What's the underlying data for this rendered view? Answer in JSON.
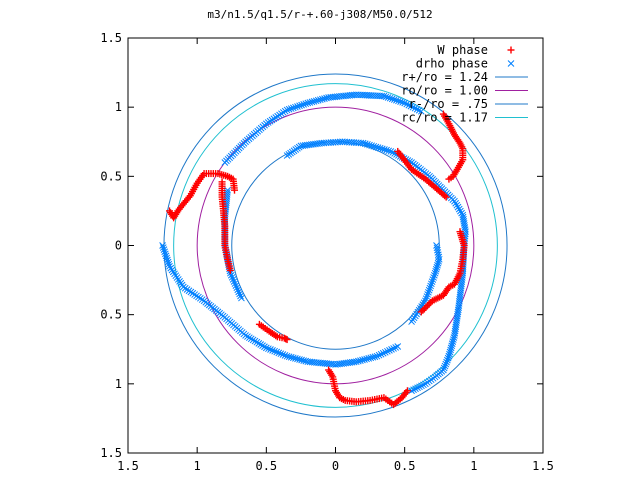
{
  "chart_data": {
    "type": "scatter",
    "title": "m3/n1.5/q1.5/r-+.60-j308/M50.0/512",
    "xlabel": "",
    "ylabel": "",
    "xlim": [
      -1.5,
      1.5
    ],
    "ylim": [
      -1.5,
      1.5
    ],
    "x_tick_labels": [
      "1.5",
      "1",
      "0.5",
      "0",
      "0.5",
      "1",
      "1.5"
    ],
    "x_tick_values": [
      -1.5,
      -1.0,
      -0.5,
      0,
      0.5,
      1.0,
      1.5
    ],
    "y_tick_labels": [
      "1.5",
      "1",
      "0.5",
      "0",
      "0.5",
      "1",
      "1.5"
    ],
    "y_tick_values": [
      1.5,
      1.0,
      0.5,
      0,
      -0.5,
      -1.0,
      -1.5
    ],
    "legend_position": "top-right",
    "legend": [
      {
        "label": "W phase",
        "symbol": "plus",
        "color": "#ff0000"
      },
      {
        "label": "drho phase",
        "symbol": "cross",
        "color": "#0080ff"
      },
      {
        "label": "r+/ro = 1.24",
        "symbol": "line",
        "color": "#1f78c8"
      },
      {
        "label": "ro/ro = 1.00",
        "symbol": "line",
        "color": "#a020a0"
      },
      {
        "label": "r-/ro = .75",
        "symbol": "line",
        "color": "#1f78c8"
      },
      {
        "label": "rc/ro = 1.17",
        "symbol": "line",
        "color": "#20c0d0"
      }
    ],
    "circles": [
      {
        "name": "r+/ro = 1.24",
        "radius": 1.24,
        "color": "#1f78c8"
      },
      {
        "name": "ro/ro = 1.00",
        "radius": 1.0,
        "color": "#a020a0"
      },
      {
        "name": "r-/ro = .75",
        "radius": 0.75,
        "color": "#1f78c8"
      },
      {
        "name": "rc/ro = 1.17",
        "radius": 1.17,
        "color": "#20c0d0"
      }
    ],
    "series": [
      {
        "name": "drho phase",
        "color": "#0080ff",
        "segments": [
          [
            [
              -1.25,
              0.0
            ],
            [
              -1.2,
              -0.15
            ],
            [
              -1.1,
              -0.3
            ],
            [
              -0.95,
              -0.4
            ],
            [
              -0.8,
              -0.52
            ],
            [
              -0.65,
              -0.65
            ],
            [
              -0.5,
              -0.74
            ],
            [
              -0.35,
              -0.8
            ],
            [
              -0.2,
              -0.84
            ],
            [
              0.0,
              -0.86
            ],
            [
              0.15,
              -0.84
            ],
            [
              0.3,
              -0.8
            ],
            [
              0.45,
              -0.73
            ]
          ],
          [
            [
              -0.8,
              0.6
            ],
            [
              -0.65,
              0.75
            ],
            [
              -0.5,
              0.88
            ],
            [
              -0.35,
              0.98
            ],
            [
              -0.2,
              1.03
            ],
            [
              -0.05,
              1.07
            ],
            [
              0.15,
              1.09
            ],
            [
              0.35,
              1.08
            ],
            [
              0.5,
              1.03
            ],
            [
              0.62,
              0.97
            ]
          ],
          [
            [
              -0.35,
              0.65
            ],
            [
              -0.25,
              0.72
            ],
            [
              -0.1,
              0.74
            ],
            [
              0.05,
              0.75
            ],
            [
              0.2,
              0.74
            ],
            [
              0.4,
              0.68
            ],
            [
              0.55,
              0.6
            ],
            [
              0.68,
              0.5
            ],
            [
              0.78,
              0.4
            ],
            [
              0.86,
              0.32
            ],
            [
              0.92,
              0.22
            ],
            [
              0.94,
              0.1
            ],
            [
              0.93,
              0.0
            ],
            [
              0.92,
              -0.2
            ],
            [
              0.89,
              -0.45
            ],
            [
              0.86,
              -0.65
            ],
            [
              0.82,
              -0.8
            ]
          ],
          [
            [
              0.55,
              -1.05
            ],
            [
              0.65,
              -1.0
            ],
            [
              0.72,
              -0.95
            ],
            [
              0.78,
              -0.9
            ],
            [
              0.82,
              -0.8
            ]
          ],
          [
            [
              0.73,
              0.0
            ],
            [
              0.75,
              -0.1
            ],
            [
              0.72,
              -0.2
            ],
            [
              0.65,
              -0.4
            ],
            [
              0.55,
              -0.55
            ]
          ],
          [
            [
              -0.78,
              0.4
            ],
            [
              -0.8,
              0.2
            ],
            [
              -0.8,
              0.0
            ],
            [
              -0.76,
              -0.2
            ],
            [
              -0.68,
              -0.38
            ]
          ]
        ]
      },
      {
        "name": "W phase",
        "color": "#ff0000",
        "segments": [
          [
            [
              -1.2,
              0.25
            ],
            [
              -1.17,
              0.2
            ],
            [
              -1.14,
              0.25
            ],
            [
              -1.1,
              0.3
            ],
            [
              -1.05,
              0.36
            ],
            [
              -1.0,
              0.45
            ],
            [
              -0.95,
              0.52
            ],
            [
              -0.85,
              0.52
            ],
            [
              -0.78,
              0.5
            ],
            [
              -0.74,
              0.48
            ],
            [
              -0.73,
              0.4
            ]
          ],
          [
            [
              -0.82,
              0.46
            ],
            [
              -0.82,
              0.35
            ],
            [
              -0.81,
              0.25
            ],
            [
              -0.8,
              0.14
            ],
            [
              -0.8,
              0.0
            ],
            [
              -0.78,
              -0.1
            ],
            [
              -0.76,
              -0.18
            ]
          ],
          [
            [
              -0.55,
              -0.57
            ],
            [
              -0.48,
              -0.62
            ],
            [
              -0.42,
              -0.66
            ],
            [
              -0.37,
              -0.67
            ],
            [
              -0.35,
              -0.68
            ]
          ],
          [
            [
              -0.05,
              -0.9
            ],
            [
              -0.02,
              -0.95
            ],
            [
              0.0,
              -1.05
            ],
            [
              0.03,
              -1.1
            ],
            [
              0.07,
              -1.12
            ],
            [
              0.15,
              -1.13
            ],
            [
              0.25,
              -1.12
            ],
            [
              0.35,
              -1.1
            ],
            [
              0.42,
              -1.15
            ],
            [
              0.48,
              -1.1
            ],
            [
              0.52,
              -1.05
            ]
          ],
          [
            [
              0.78,
              0.95
            ],
            [
              0.82,
              0.88
            ],
            [
              0.86,
              0.8
            ],
            [
              0.9,
              0.74
            ],
            [
              0.92,
              0.7
            ],
            [
              0.92,
              0.62
            ],
            [
              0.88,
              0.55
            ],
            [
              0.85,
              0.5
            ],
            [
              0.82,
              0.48
            ]
          ],
          [
            [
              0.45,
              0.68
            ],
            [
              0.55,
              0.55
            ],
            [
              0.65,
              0.48
            ],
            [
              0.72,
              0.42
            ],
            [
              0.8,
              0.35
            ]
          ],
          [
            [
              0.9,
              0.1
            ],
            [
              0.93,
              0.0
            ],
            [
              0.92,
              -0.1
            ],
            [
              0.9,
              -0.2
            ],
            [
              0.86,
              -0.28
            ],
            [
              0.82,
              -0.3
            ],
            [
              0.78,
              -0.36
            ],
            [
              0.7,
              -0.4
            ],
            [
              0.62,
              -0.48
            ]
          ]
        ]
      }
    ]
  }
}
